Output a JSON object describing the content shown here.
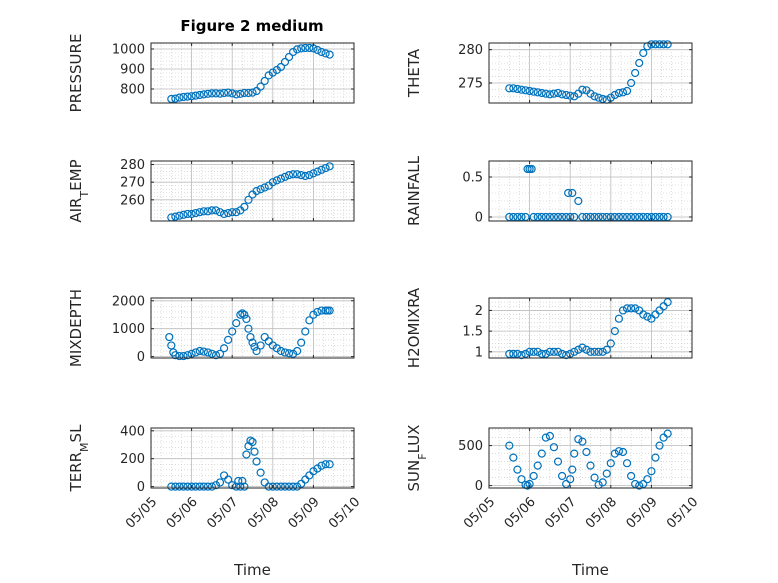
{
  "figure_title": "Figure 2 medium",
  "colors": {
    "marker": "#0072BD",
    "grid": "#c8c8c8",
    "axis": "#262626",
    "background": "#ffffff"
  },
  "chart_data": [
    {
      "type": "scatter",
      "title": "Figure 2 medium",
      "ylabel": "PRESSURE",
      "ylabel_parts": [
        [
          "PRESSURE",
          ""
        ]
      ],
      "xlabel": "",
      "ylim": [
        730,
        1030
      ],
      "xlim": [
        0,
        5
      ],
      "yticks": [
        800,
        900,
        1000
      ],
      "grid": true,
      "x": [
        0.5,
        0.6,
        0.7,
        0.8,
        0.9,
        1.0,
        1.1,
        1.2,
        1.3,
        1.4,
        1.5,
        1.6,
        1.7,
        1.8,
        1.9,
        2.0,
        2.1,
        2.2,
        2.3,
        2.4,
        2.5,
        2.6,
        2.7,
        2.8,
        2.9,
        3.0,
        3.1,
        3.2,
        3.3,
        3.4,
        3.5,
        3.6,
        3.7,
        3.8,
        3.9,
        4.0,
        4.1,
        4.2,
        4.3,
        4.4
      ],
      "y": [
        750,
        752,
        757,
        760,
        762,
        764,
        767,
        770,
        773,
        776,
        778,
        778,
        777,
        780,
        782,
        778,
        773,
        776,
        780,
        780,
        782,
        790,
        812,
        840,
        868,
        882,
        895,
        910,
        935,
        960,
        985,
        998,
        1003,
        1005,
        1005,
        1003,
        995,
        985,
        978,
        972
      ]
    },
    {
      "type": "scatter",
      "title": "",
      "ylabel": "THETA",
      "ylabel_parts": [
        [
          "THETA",
          ""
        ]
      ],
      "xlabel": "",
      "ylim": [
        272,
        281
      ],
      "xlim": [
        0,
        5
      ],
      "yticks": [
        275,
        280
      ],
      "grid": true,
      "x": [
        0.5,
        0.6,
        0.7,
        0.8,
        0.9,
        1.0,
        1.1,
        1.2,
        1.3,
        1.4,
        1.5,
        1.6,
        1.7,
        1.8,
        1.9,
        2.0,
        2.1,
        2.2,
        2.3,
        2.4,
        2.5,
        2.6,
        2.7,
        2.8,
        2.9,
        3.0,
        3.1,
        3.2,
        3.3,
        3.4,
        3.5,
        3.6,
        3.7,
        3.8,
        3.9,
        4.0,
        4.1,
        4.2,
        4.3,
        4.4
      ],
      "y": [
        274.2,
        274.2,
        274.1,
        274.0,
        273.9,
        273.8,
        273.7,
        273.6,
        273.5,
        273.4,
        273.3,
        273.4,
        273.5,
        273.3,
        273.2,
        273.1,
        273.0,
        273.4,
        274.0,
        273.9,
        273.4,
        273.0,
        272.8,
        272.6,
        272.5,
        272.8,
        273.2,
        273.5,
        273.6,
        273.8,
        275.0,
        276.5,
        278.0,
        279.5,
        280.5,
        280.8,
        280.8,
        280.8,
        280.8,
        280.8
      ]
    },
    {
      "type": "scatter",
      "title": "",
      "ylabel": "AIR_TEMP",
      "ylabel_parts": [
        [
          "AIR",
          ""
        ],
        [
          "T",
          "sub"
        ],
        [
          "EMP",
          ""
        ]
      ],
      "xlabel": "",
      "ylim": [
        248,
        282
      ],
      "xlim": [
        0,
        5
      ],
      "yticks": [
        260,
        270,
        280
      ],
      "grid": true,
      "x": [
        0.5,
        0.6,
        0.7,
        0.8,
        0.9,
        1.0,
        1.1,
        1.2,
        1.3,
        1.4,
        1.5,
        1.6,
        1.7,
        1.8,
        1.9,
        2.0,
        2.1,
        2.2,
        2.3,
        2.4,
        2.5,
        2.6,
        2.7,
        2.8,
        2.9,
        3.0,
        3.1,
        3.2,
        3.3,
        3.4,
        3.5,
        3.6,
        3.7,
        3.8,
        3.9,
        4.0,
        4.1,
        4.2,
        4.3,
        4.4
      ],
      "y": [
        250,
        250.5,
        251,
        251.5,
        252,
        252,
        252.5,
        253,
        253.5,
        253.5,
        254,
        254,
        253,
        252,
        252.5,
        253,
        253,
        254,
        256,
        260,
        263,
        265,
        266,
        267,
        268,
        270,
        271,
        272,
        273,
        274,
        274.5,
        274.5,
        274,
        273.5,
        274,
        275,
        276,
        277,
        278,
        279
      ]
    },
    {
      "type": "scatter",
      "title": "",
      "ylabel": "RAINFALL",
      "ylabel_parts": [
        [
          "RAINFALL",
          ""
        ]
      ],
      "xlabel": "",
      "ylim": [
        -0.05,
        0.7
      ],
      "xlim": [
        0,
        5
      ],
      "yticks": [
        0,
        0.5
      ],
      "grid": true,
      "x": [
        0.5,
        0.6,
        0.7,
        0.8,
        0.9,
        0.95,
        1.0,
        1.05,
        1.1,
        1.2,
        1.3,
        1.4,
        1.5,
        1.6,
        1.7,
        1.8,
        1.9,
        1.95,
        2.0,
        2.05,
        2.1,
        2.2,
        2.3,
        2.4,
        2.5,
        2.6,
        2.7,
        2.8,
        2.9,
        3.0,
        3.1,
        3.2,
        3.3,
        3.4,
        3.5,
        3.6,
        3.7,
        3.8,
        3.9,
        4.0,
        4.1,
        4.2,
        4.3,
        4.4
      ],
      "y": [
        0,
        0,
        0,
        0,
        0,
        0.6,
        0.6,
        0.6,
        0,
        0,
        0,
        0,
        0,
        0,
        0,
        0,
        0,
        0.3,
        0,
        0.3,
        0,
        0.2,
        0,
        0,
        0,
        0,
        0,
        0,
        0,
        0,
        0,
        0,
        0,
        0,
        0,
        0,
        0,
        0,
        0,
        0,
        0,
        0,
        0,
        0
      ]
    },
    {
      "type": "scatter",
      "title": "",
      "ylabel": "MIXDEPTH",
      "ylabel_parts": [
        [
          "MIXDEPTH",
          ""
        ]
      ],
      "xlabel": "",
      "ylim": [
        -50,
        2100
      ],
      "xlim": [
        0,
        5
      ],
      "yticks": [
        0,
        1000,
        2000
      ],
      "grid": true,
      "x": [
        0.45,
        0.5,
        0.55,
        0.6,
        0.7,
        0.8,
        0.9,
        1.0,
        1.1,
        1.2,
        1.3,
        1.4,
        1.5,
        1.6,
        1.7,
        1.8,
        1.9,
        2.0,
        2.1,
        2.2,
        2.25,
        2.3,
        2.35,
        2.4,
        2.45,
        2.5,
        2.55,
        2.6,
        2.7,
        2.8,
        2.9,
        3.0,
        3.1,
        3.2,
        3.3,
        3.4,
        3.5,
        3.6,
        3.7,
        3.8,
        3.9,
        4.0,
        4.1,
        4.2,
        4.3,
        4.35,
        4.4
      ],
      "y": [
        700,
        400,
        150,
        50,
        20,
        20,
        50,
        100,
        150,
        200,
        180,
        150,
        100,
        50,
        100,
        300,
        600,
        900,
        1200,
        1500,
        1550,
        1500,
        1350,
        1000,
        700,
        500,
        350,
        200,
        400,
        700,
        550,
        400,
        300,
        200,
        150,
        120,
        100,
        200,
        500,
        900,
        1300,
        1500,
        1600,
        1650,
        1650,
        1650,
        1650
      ]
    },
    {
      "type": "scatter",
      "title": "",
      "ylabel": "H2OMIXRA",
      "ylabel_parts": [
        [
          "H2OMIXRA",
          ""
        ]
      ],
      "xlabel": "",
      "ylim": [
        0.85,
        2.3
      ],
      "xlim": [
        0,
        5
      ],
      "yticks": [
        1,
        1.5,
        2
      ],
      "grid": true,
      "x": [
        0.5,
        0.6,
        0.7,
        0.8,
        0.9,
        1.0,
        1.1,
        1.2,
        1.3,
        1.4,
        1.5,
        1.6,
        1.7,
        1.8,
        1.9,
        2.0,
        2.1,
        2.2,
        2.3,
        2.4,
        2.5,
        2.6,
        2.7,
        2.8,
        2.9,
        3.0,
        3.1,
        3.2,
        3.3,
        3.4,
        3.5,
        3.6,
        3.7,
        3.8,
        3.9,
        4.0,
        4.1,
        4.2,
        4.3,
        4.4
      ],
      "y": [
        0.95,
        0.95,
        0.95,
        0.92,
        0.95,
        1.0,
        1.0,
        1.0,
        0.95,
        0.95,
        1.0,
        1.0,
        1.0,
        0.95,
        0.92,
        0.95,
        1.0,
        1.05,
        1.1,
        1.05,
        1.0,
        1.0,
        1.0,
        1.0,
        1.05,
        1.2,
        1.5,
        1.8,
        2.0,
        2.05,
        2.05,
        2.05,
        2.0,
        1.9,
        1.85,
        1.8,
        1.9,
        2.0,
        2.1,
        2.2
      ]
    },
    {
      "type": "scatter",
      "title": "",
      "ylabel": "TERR_MSL",
      "ylabel_parts": [
        [
          "TERR",
          ""
        ],
        [
          "M",
          "sub"
        ],
        [
          "SL",
          ""
        ]
      ],
      "xlabel": "Time",
      "ylim": [
        -10,
        420
      ],
      "xlim": [
        0,
        5
      ],
      "yticks": [
        0,
        200,
        400
      ],
      "grid": true,
      "xticks": [
        0,
        1,
        2,
        3,
        4,
        5
      ],
      "xticklabels": [
        "05/05",
        "05/06",
        "05/07",
        "05/08",
        "05/09",
        "05/10"
      ],
      "x": [
        0.5,
        0.6,
        0.7,
        0.8,
        0.9,
        1.0,
        1.1,
        1.2,
        1.3,
        1.4,
        1.5,
        1.6,
        1.7,
        1.8,
        1.9,
        2.0,
        2.1,
        2.15,
        2.2,
        2.25,
        2.3,
        2.35,
        2.4,
        2.45,
        2.5,
        2.55,
        2.6,
        2.7,
        2.8,
        2.9,
        3.0,
        3.1,
        3.2,
        3.3,
        3.4,
        3.5,
        3.6,
        3.7,
        3.8,
        3.9,
        4.0,
        4.1,
        4.2,
        4.3,
        4.4
      ],
      "y": [
        0,
        0,
        0,
        0,
        0,
        0,
        0,
        0,
        0,
        0,
        0,
        10,
        30,
        80,
        50,
        10,
        0,
        40,
        0,
        40,
        0,
        230,
        290,
        330,
        320,
        250,
        180,
        100,
        30,
        0,
        0,
        0,
        0,
        0,
        0,
        0,
        0,
        20,
        50,
        80,
        110,
        130,
        150,
        160,
        160
      ]
    },
    {
      "type": "scatter",
      "title": "",
      "ylabel": "SUN_FLUX",
      "ylabel_parts": [
        [
          "SUN",
          ""
        ],
        [
          "F",
          "sub"
        ],
        [
          "LUX",
          ""
        ]
      ],
      "xlabel": "Time",
      "ylim": [
        -30,
        720
      ],
      "xlim": [
        0,
        5
      ],
      "yticks": [
        0,
        500
      ],
      "grid": true,
      "xticks": [
        0,
        1,
        2,
        3,
        4,
        5
      ],
      "xticklabels": [
        "05/05",
        "05/06",
        "05/07",
        "05/08",
        "05/09",
        "05/10"
      ],
      "x": [
        0.5,
        0.6,
        0.7,
        0.8,
        0.9,
        0.95,
        1.0,
        1.1,
        1.2,
        1.3,
        1.4,
        1.5,
        1.6,
        1.7,
        1.8,
        1.9,
        2.0,
        2.05,
        2.1,
        2.2,
        2.3,
        2.4,
        2.5,
        2.6,
        2.7,
        2.8,
        2.9,
        3.0,
        3.1,
        3.2,
        3.3,
        3.4,
        3.5,
        3.6,
        3.7,
        3.8,
        3.9,
        4.0,
        4.1,
        4.2,
        4.3,
        4.4
      ],
      "y": [
        500,
        350,
        200,
        80,
        10,
        0,
        20,
        120,
        250,
        400,
        600,
        620,
        480,
        300,
        120,
        20,
        80,
        200,
        400,
        580,
        550,
        420,
        250,
        100,
        10,
        40,
        150,
        280,
        400,
        430,
        420,
        280,
        120,
        20,
        0,
        20,
        80,
        180,
        350,
        500,
        600,
        650
      ]
    }
  ]
}
